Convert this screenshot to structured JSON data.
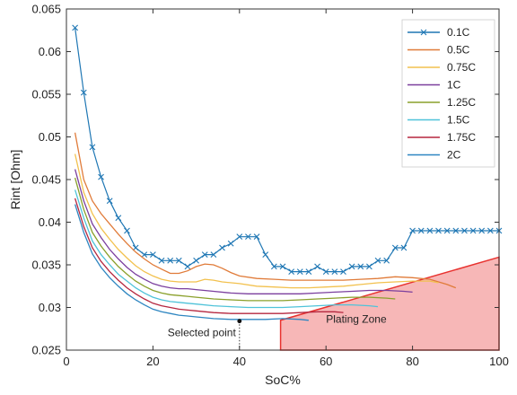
{
  "chart_data": {
    "type": "line",
    "title": "",
    "xlabel": "SoC%",
    "ylabel": "Rint [Ohm]",
    "xlim": [
      0,
      100
    ],
    "ylim": [
      0.025,
      0.065
    ],
    "xticks": [
      0,
      20,
      40,
      60,
      80,
      100
    ],
    "yticks": [
      0.025,
      0.03,
      0.035,
      0.04,
      0.045,
      0.05,
      0.055,
      0.06,
      0.065
    ],
    "xtick_labels": [
      "0",
      "20",
      "40",
      "60",
      "80",
      "100"
    ],
    "ytick_labels": [
      "0.025",
      "0.03",
      "0.035",
      "0.04",
      "0.045",
      "0.05",
      "0.055",
      "0.06",
      "0.065"
    ],
    "grid": false,
    "legend_position": "top-right",
    "series": [
      {
        "name": "0.1C",
        "color": "#1f77b4",
        "marker": "x",
        "x": [
          2,
          4,
          6,
          8,
          10,
          12,
          14,
          16,
          18,
          20,
          22,
          24,
          26,
          28,
          30,
          32,
          34,
          36,
          38,
          40,
          42,
          44,
          46,
          48,
          50,
          52,
          54,
          56,
          58,
          60,
          62,
          64,
          66,
          68,
          70,
          72,
          74,
          76,
          78,
          80,
          82,
          84,
          86,
          88,
          90,
          92,
          94,
          96,
          98,
          100
        ],
        "y": [
          0.0628,
          0.0552,
          0.0488,
          0.0453,
          0.0425,
          0.0405,
          0.039,
          0.037,
          0.0362,
          0.0362,
          0.0355,
          0.0355,
          0.0355,
          0.0348,
          0.0355,
          0.0362,
          0.0362,
          0.037,
          0.0375,
          0.0383,
          0.0383,
          0.0383,
          0.0362,
          0.0348,
          0.0348,
          0.0342,
          0.0342,
          0.0342,
          0.0348,
          0.0342,
          0.0342,
          0.0342,
          0.0348,
          0.0348,
          0.0348,
          0.0355,
          0.0355,
          0.037,
          0.037,
          0.039,
          0.039,
          0.039,
          0.039,
          0.039,
          0.039,
          0.039,
          0.039,
          0.039,
          0.039,
          0.039
        ]
      },
      {
        "name": "0.5C",
        "color": "#e07b39",
        "x": [
          2,
          4,
          6,
          8,
          10,
          12,
          14,
          16,
          18,
          20,
          22,
          24,
          26,
          28,
          30,
          32,
          34,
          36,
          38,
          40,
          44,
          48,
          52,
          56,
          60,
          64,
          68,
          72,
          76,
          80,
          84,
          88,
          90
        ],
        "y": [
          0.0505,
          0.045,
          0.0425,
          0.041,
          0.0398,
          0.0386,
          0.0375,
          0.0365,
          0.0357,
          0.035,
          0.0345,
          0.034,
          0.034,
          0.0343,
          0.0348,
          0.0351,
          0.035,
          0.0346,
          0.0341,
          0.0337,
          0.0334,
          0.0333,
          0.0332,
          0.0332,
          0.0332,
          0.0332,
          0.0333,
          0.0334,
          0.0336,
          0.0335,
          0.0333,
          0.0327,
          0.0323
        ]
      },
      {
        "name": "0.75C",
        "color": "#f2c14e",
        "x": [
          2,
          4,
          6,
          8,
          10,
          12,
          14,
          16,
          18,
          20,
          22,
          24,
          26,
          28,
          30,
          32,
          34,
          36,
          40,
          44,
          48,
          52,
          56,
          60,
          64,
          68,
          72,
          76,
          80,
          84,
          86
        ],
        "y": [
          0.048,
          0.0435,
          0.041,
          0.0393,
          0.038,
          0.0368,
          0.0358,
          0.0349,
          0.0342,
          0.0337,
          0.0333,
          0.0331,
          0.033,
          0.033,
          0.033,
          0.0333,
          0.0332,
          0.033,
          0.0328,
          0.0325,
          0.0324,
          0.0323,
          0.0323,
          0.0324,
          0.0325,
          0.0327,
          0.0329,
          0.033,
          0.0331,
          0.0331,
          0.0329
        ]
      },
      {
        "name": "1C",
        "color": "#7b3f9e",
        "x": [
          2,
          4,
          6,
          8,
          10,
          12,
          14,
          16,
          18,
          20,
          22,
          24,
          26,
          28,
          30,
          34,
          38,
          42,
          46,
          50,
          54,
          58,
          62,
          66,
          70,
          74,
          78,
          80
        ],
        "y": [
          0.0462,
          0.0425,
          0.0398,
          0.0382,
          0.0368,
          0.0357,
          0.0347,
          0.0339,
          0.0333,
          0.0328,
          0.0325,
          0.0323,
          0.0322,
          0.0322,
          0.0321,
          0.0319,
          0.0317,
          0.0316,
          0.0316,
          0.0316,
          0.0316,
          0.0317,
          0.0318,
          0.0319,
          0.032,
          0.032,
          0.0319,
          0.0318
        ]
      },
      {
        "name": "1.25C",
        "color": "#8aa02b",
        "x": [
          2,
          4,
          6,
          8,
          10,
          12,
          14,
          16,
          18,
          20,
          22,
          24,
          26,
          28,
          30,
          34,
          38,
          42,
          46,
          50,
          54,
          58,
          62,
          66,
          70,
          74,
          76
        ],
        "y": [
          0.0452,
          0.0415,
          0.0388,
          0.0372,
          0.0359,
          0.0348,
          0.0339,
          0.0331,
          0.0325,
          0.032,
          0.0317,
          0.0315,
          0.0314,
          0.0313,
          0.0312,
          0.031,
          0.0309,
          0.0308,
          0.0308,
          0.0308,
          0.0309,
          0.031,
          0.0311,
          0.0312,
          0.0312,
          0.0311,
          0.031
        ]
      },
      {
        "name": "1.5C",
        "color": "#4fc3d9",
        "x": [
          2,
          4,
          6,
          8,
          10,
          12,
          14,
          16,
          18,
          20,
          22,
          24,
          26,
          28,
          30,
          34,
          38,
          42,
          46,
          50,
          54,
          58,
          62,
          66,
          70,
          72
        ],
        "y": [
          0.0438,
          0.0405,
          0.0378,
          0.0362,
          0.035,
          0.0339,
          0.0331,
          0.0323,
          0.0317,
          0.0312,
          0.0309,
          0.0307,
          0.0306,
          0.0305,
          0.0304,
          0.0302,
          0.0301,
          0.03,
          0.03,
          0.03,
          0.0301,
          0.0302,
          0.0303,
          0.0303,
          0.0302,
          0.0301
        ]
      },
      {
        "name": "1.75C",
        "color": "#b5273f",
        "x": [
          2,
          4,
          6,
          8,
          10,
          12,
          14,
          16,
          18,
          20,
          22,
          24,
          26,
          28,
          30,
          34,
          38,
          42,
          46,
          50,
          54,
          58,
          62,
          64
        ],
        "y": [
          0.0428,
          0.0395,
          0.037,
          0.0354,
          0.0342,
          0.0332,
          0.0323,
          0.0316,
          0.031,
          0.0305,
          0.0302,
          0.03,
          0.0298,
          0.0297,
          0.0296,
          0.0294,
          0.0293,
          0.0293,
          0.0293,
          0.0293,
          0.0294,
          0.0295,
          0.0295,
          0.0294
        ]
      },
      {
        "name": "2C",
        "color": "#2e86c1",
        "x": [
          2,
          4,
          6,
          8,
          10,
          12,
          14,
          16,
          18,
          20,
          22,
          24,
          26,
          28,
          30,
          34,
          38,
          42,
          46,
          50,
          54,
          56
        ],
        "y": [
          0.0421,
          0.0388,
          0.0363,
          0.0347,
          0.0335,
          0.0325,
          0.0316,
          0.0309,
          0.0303,
          0.0298,
          0.0295,
          0.0293,
          0.0291,
          0.029,
          0.0289,
          0.0287,
          0.0286,
          0.0286,
          0.0286,
          0.0287,
          0.0286,
          0.0285
        ]
      }
    ],
    "annotations": [
      {
        "text": "Selected point",
        "x": 40,
        "y": 0.0284
      },
      {
        "text": "Plating Zone"
      }
    ],
    "plating_zone": {
      "fill": "#f7b7b7",
      "edge": "#e8322f",
      "polygon_x": [
        49.5,
        49.5,
        100,
        100
      ],
      "polygon_y": [
        0.025,
        0.0285,
        0.0359,
        0.025
      ]
    }
  }
}
